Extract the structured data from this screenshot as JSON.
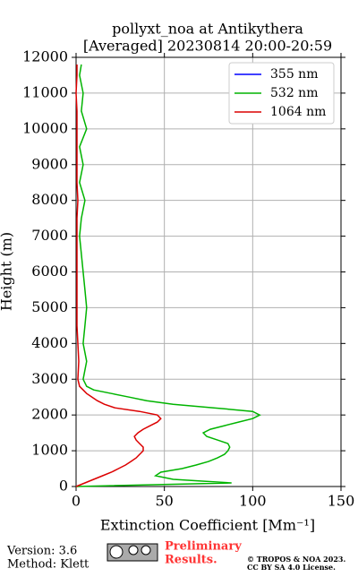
{
  "chart_data": {
    "type": "line",
    "title": "pollyxt_noa at Antikythera",
    "subtitle": "[Averaged] 20230814 20:00-20:59",
    "xlabel": "Extinction Coefficient [Mm⁻¹]",
    "ylabel": "Height (m)",
    "xlim": [
      0,
      150
    ],
    "xticks": [
      0,
      50,
      100,
      150
    ],
    "ylim": [
      0,
      12000
    ],
    "yticks": [
      0,
      1000,
      2000,
      3000,
      4000,
      5000,
      6000,
      7000,
      8000,
      9000,
      10000,
      11000,
      12000
    ],
    "grid": true,
    "legend": "upper right",
    "y": [
      0,
      100,
      200,
      300,
      400,
      500,
      600,
      700,
      800,
      900,
      1000,
      1100,
      1200,
      1300,
      1400,
      1500,
      1600,
      1700,
      1800,
      1900,
      2000,
      2100,
      2200,
      2300,
      2400,
      2500,
      2600,
      2700,
      2800,
      3000,
      3500,
      4000,
      4500,
      5000,
      5500,
      6000,
      6500,
      7000,
      7500,
      8000,
      8500,
      9000,
      9500,
      10000,
      10500,
      11000,
      11500,
      11800
    ],
    "series": [
      {
        "name": "355 nm",
        "color": "#0000ff",
        "values": [
          null,
          null,
          null,
          null,
          null,
          null,
          null,
          null,
          null,
          null,
          null,
          null,
          null,
          null,
          null,
          null,
          null,
          null,
          null,
          null,
          null,
          null,
          null,
          null,
          null,
          null,
          null,
          null,
          null,
          null,
          null,
          null,
          null,
          null,
          null,
          null,
          null,
          null,
          null,
          null,
          null,
          null,
          null,
          null,
          null,
          null,
          null,
          null
        ]
      },
      {
        "name": "532 nm",
        "color": "#00b400",
        "values": [
          0,
          88,
          55,
          45,
          48,
          60,
          68,
          75,
          80,
          84,
          86,
          87,
          86,
          80,
          74,
          72,
          76,
          84,
          92,
          100,
          104,
          100,
          78,
          55,
          40,
          30,
          20,
          10,
          6,
          4,
          6,
          4,
          5,
          6,
          5,
          4,
          3,
          2,
          3,
          5,
          2,
          4,
          2,
          6,
          3,
          4,
          2,
          3
        ]
      },
      {
        "name": "1064 nm",
        "color": "#dc0000",
        "values": [
          0,
          5,
          10,
          15,
          20,
          24,
          28,
          31,
          34,
          36,
          38,
          38,
          36,
          34,
          33,
          35,
          38,
          42,
          46,
          48,
          46,
          36,
          22,
          16,
          12,
          9,
          6,
          4,
          2,
          1,
          1.5,
          1,
          0.5,
          0.5,
          0.5,
          0.5,
          0.5,
          0.5,
          0.5,
          1,
          0.5,
          0.5,
          0.5,
          0.5,
          0.5,
          0,
          0.5,
          0.5
        ]
      }
    ]
  },
  "footer": {
    "version": "Version: 3.6",
    "method": "Method: Klett",
    "notice": "Preliminary",
    "notice2": "Results.",
    "copyright": "© TROPOS & NOA 2023.",
    "license": "CC BY SA 4.0 License."
  }
}
